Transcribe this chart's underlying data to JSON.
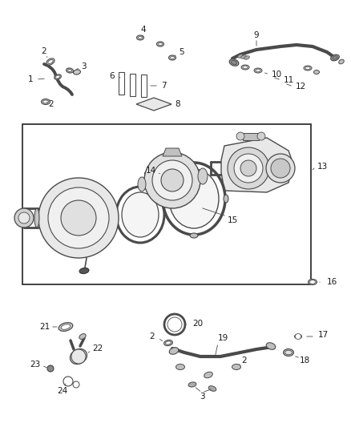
{
  "bg_color": "#ffffff",
  "lc": "#4a4a4a",
  "tc": "#1a1a1a",
  "fig_w": 4.38,
  "fig_h": 5.33,
  "dpi": 100
}
